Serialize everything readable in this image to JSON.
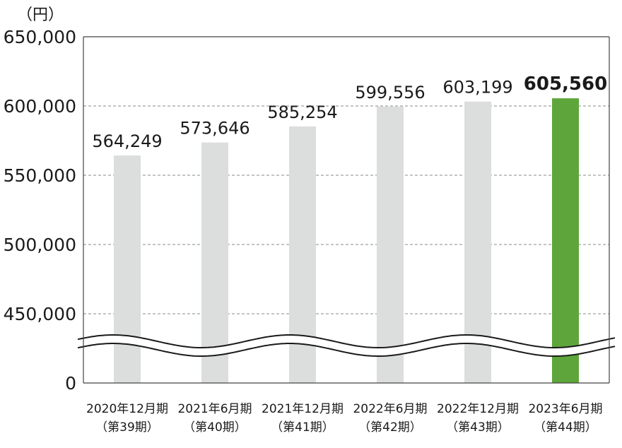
{
  "chart_data": {
    "type": "bar",
    "unit_label": "（円）",
    "y_ticks": [
      "650,000",
      "600,000",
      "550,000",
      "500,000",
      "450,000",
      "0"
    ],
    "y_tick_values": [
      650000,
      600000,
      550000,
      500000,
      450000,
      0
    ],
    "ylim": [
      0,
      650000
    ],
    "axis_break": true,
    "grid": "dashed horizontal",
    "categories": [
      [
        "2020年12月期",
        "（第39期）"
      ],
      [
        "2021年6月期",
        "（第40期）"
      ],
      [
        "2021年12月期",
        "（第41期）"
      ],
      [
        "2022年6月期",
        "（第42期）"
      ],
      [
        "2022年12月期",
        "（第43期）"
      ],
      [
        "2023年6月期",
        "（第44期）"
      ]
    ],
    "values": [
      564249,
      573646,
      585254,
      599556,
      603199,
      605560
    ],
    "value_labels": [
      "564,249",
      "573,646",
      "585,254",
      "599,556",
      "603,199",
      "605,560"
    ],
    "highlight_index": 5,
    "colors": {
      "bar": "#dcdddd",
      "highlight": "#5ea63b",
      "grid": "#888888",
      "axis": "#444444"
    }
  }
}
